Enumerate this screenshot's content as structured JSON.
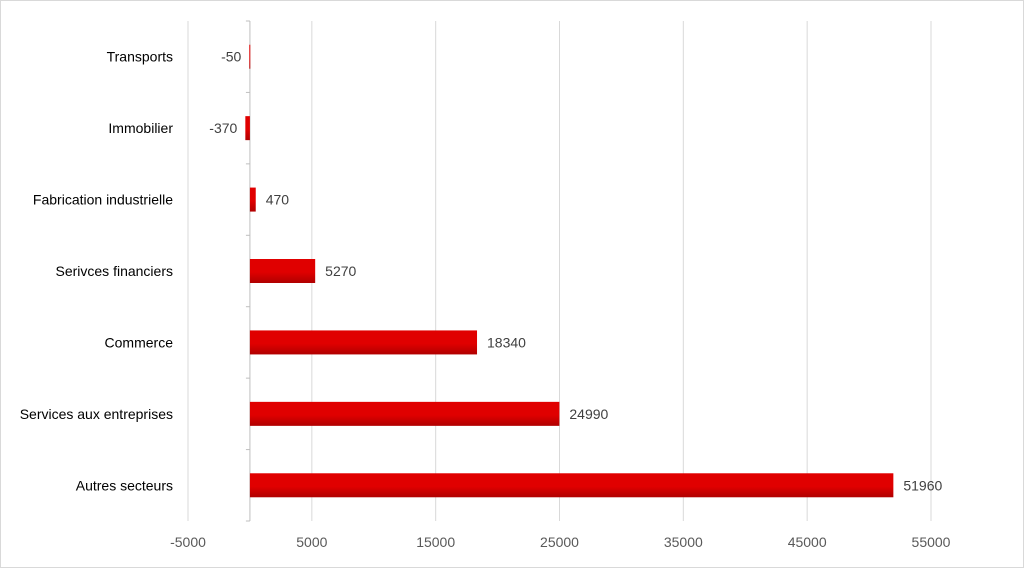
{
  "chart_data": {
    "type": "bar",
    "orientation": "horizontal",
    "title": "",
    "xlabel": "",
    "ylabel": "",
    "categories": [
      "Transports",
      "Immobilier",
      "Fabrication industrielle",
      "Serivces financiers",
      "Commerce",
      "Services aux entreprises",
      "Autres secteurs"
    ],
    "values": [
      -50,
      -370,
      470,
      5270,
      18340,
      24990,
      51960
    ],
    "data_labels": [
      "-50",
      "-370",
      "470",
      "5270",
      "18340",
      "24990",
      "51960"
    ],
    "xlim": [
      -5000,
      55000
    ],
    "x_ticks": [
      -5000,
      5000,
      15000,
      25000,
      35000,
      45000,
      55000
    ],
    "x_tick_labels": [
      "-5000",
      "5000",
      "15000",
      "25000",
      "35000",
      "45000",
      "55000"
    ],
    "grid": "vertical",
    "legend": "none",
    "bar_color": "#e00000",
    "bar_color_dark": "#b00000",
    "grid_color": "#d9d9d9",
    "axis_color": "#bfbfbf"
  }
}
